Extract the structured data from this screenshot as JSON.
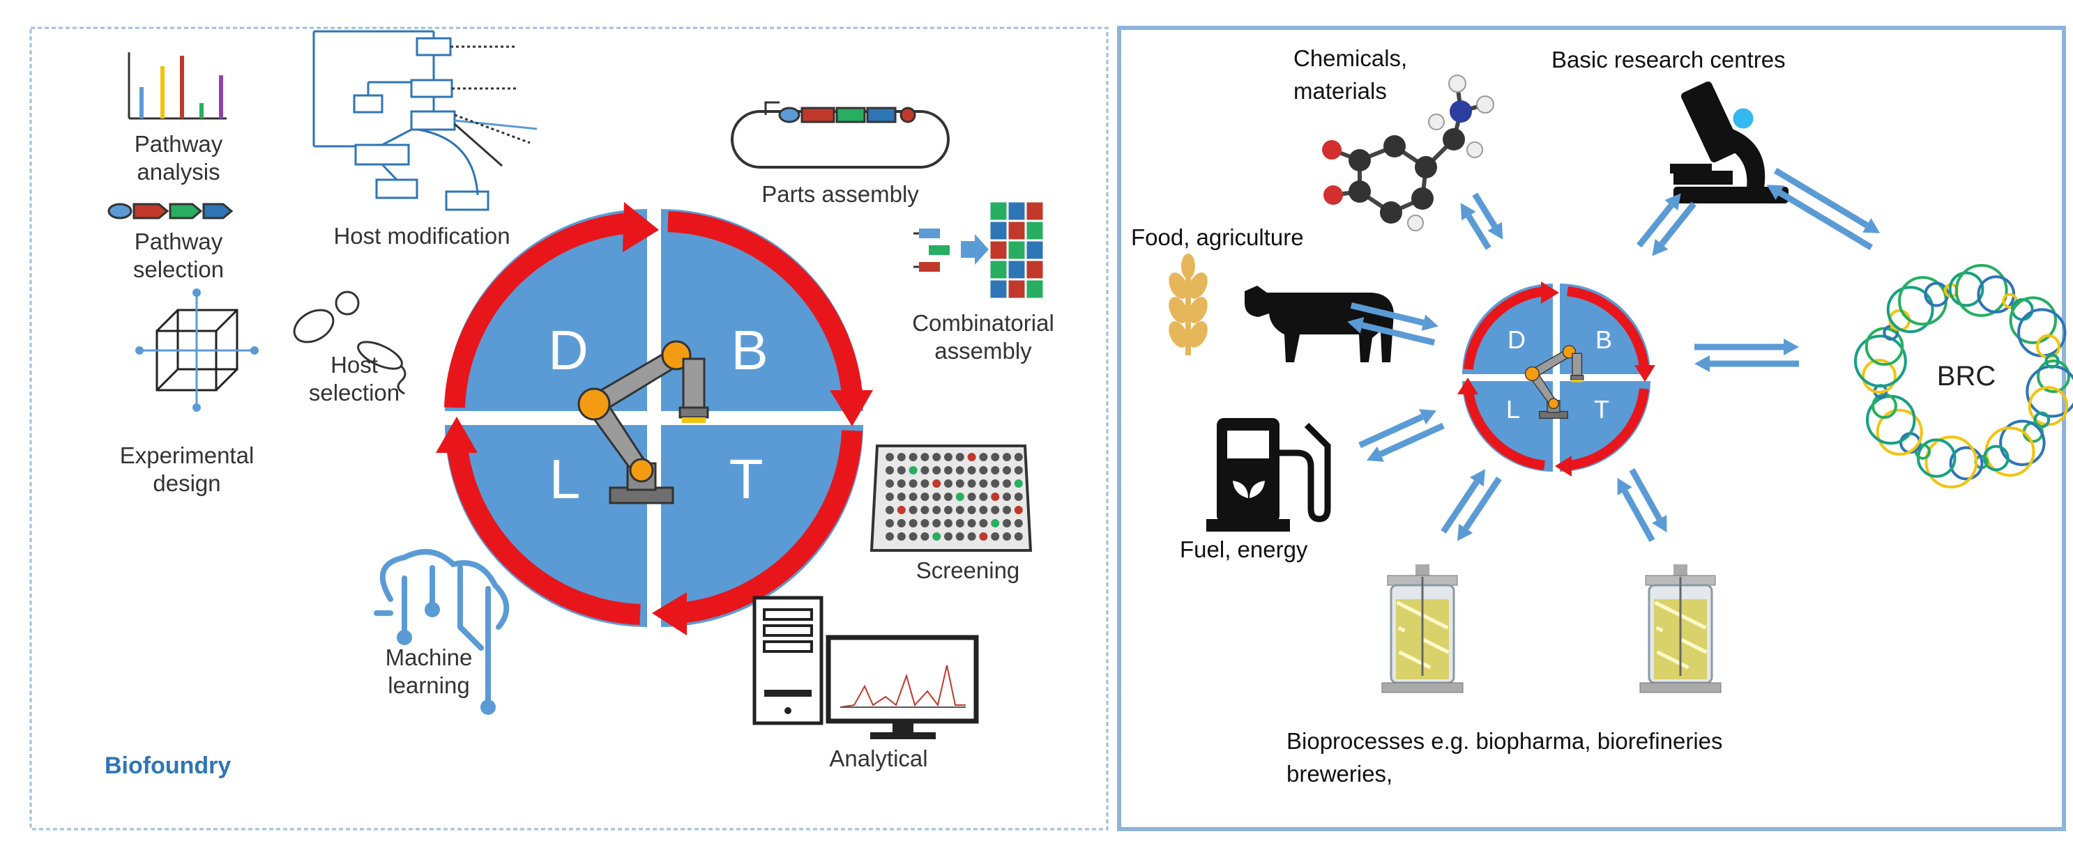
{
  "left_panel": {
    "title": "Biofoundry",
    "cycle": {
      "d": "D",
      "b": "B",
      "t": "T",
      "l": "L"
    },
    "labels": {
      "pathway_analysis_1": "Pathway",
      "pathway_analysis_2": "analysis",
      "pathway_selection_1": "Pathway",
      "pathway_selection_2": "selection",
      "experimental_design_1": "Experimental",
      "experimental_design_2": "design",
      "host_modification": "Host modification",
      "host_selection_1": "Host",
      "host_selection_2": "selection",
      "parts_assembly": "Parts assembly",
      "combinatorial_assembly_1": "Combinatorial",
      "combinatorial_assembly_2": "assembly",
      "screening": "Screening",
      "machine_learning_1": "Machine",
      "machine_learning_2": "learning",
      "analytical": "Analytical"
    }
  },
  "right_panel": {
    "labels": {
      "chemicals_1": "Chemicals,",
      "chemicals_2": "materials",
      "research": "Basic research centres",
      "food": "Food, agriculture",
      "fuel": "Fuel, energy",
      "brc": "BRC",
      "bioprocesses_1": "Bioprocesses e.g. biopharma, biorefineries",
      "bioprocesses_2": "breweries,"
    },
    "cycle": {
      "d": "D",
      "b": "B",
      "t": "T",
      "l": "L"
    }
  },
  "colors": {
    "cycle_blue": "#5b9bd5",
    "cycle_red": "#e8161b",
    "arrow_blue": "#5b9bd5",
    "title_blue": "#2e75b6",
    "panel_border": "#8fb4d9"
  },
  "icons": [
    "bar-chart-icon",
    "pathway-parts-icon",
    "cube-icon",
    "host-cells-icon",
    "network-icon",
    "plasmid-icon",
    "combinatorial-grid-icon",
    "well-plate-icon",
    "brain-circuit-icon",
    "computer-icon",
    "robot-arm-icon",
    "molecule-icon",
    "microscope-icon",
    "wheat-icon",
    "cow-icon",
    "fuel-pump-icon",
    "dna-ring-icon",
    "bioreactor-icon"
  ]
}
